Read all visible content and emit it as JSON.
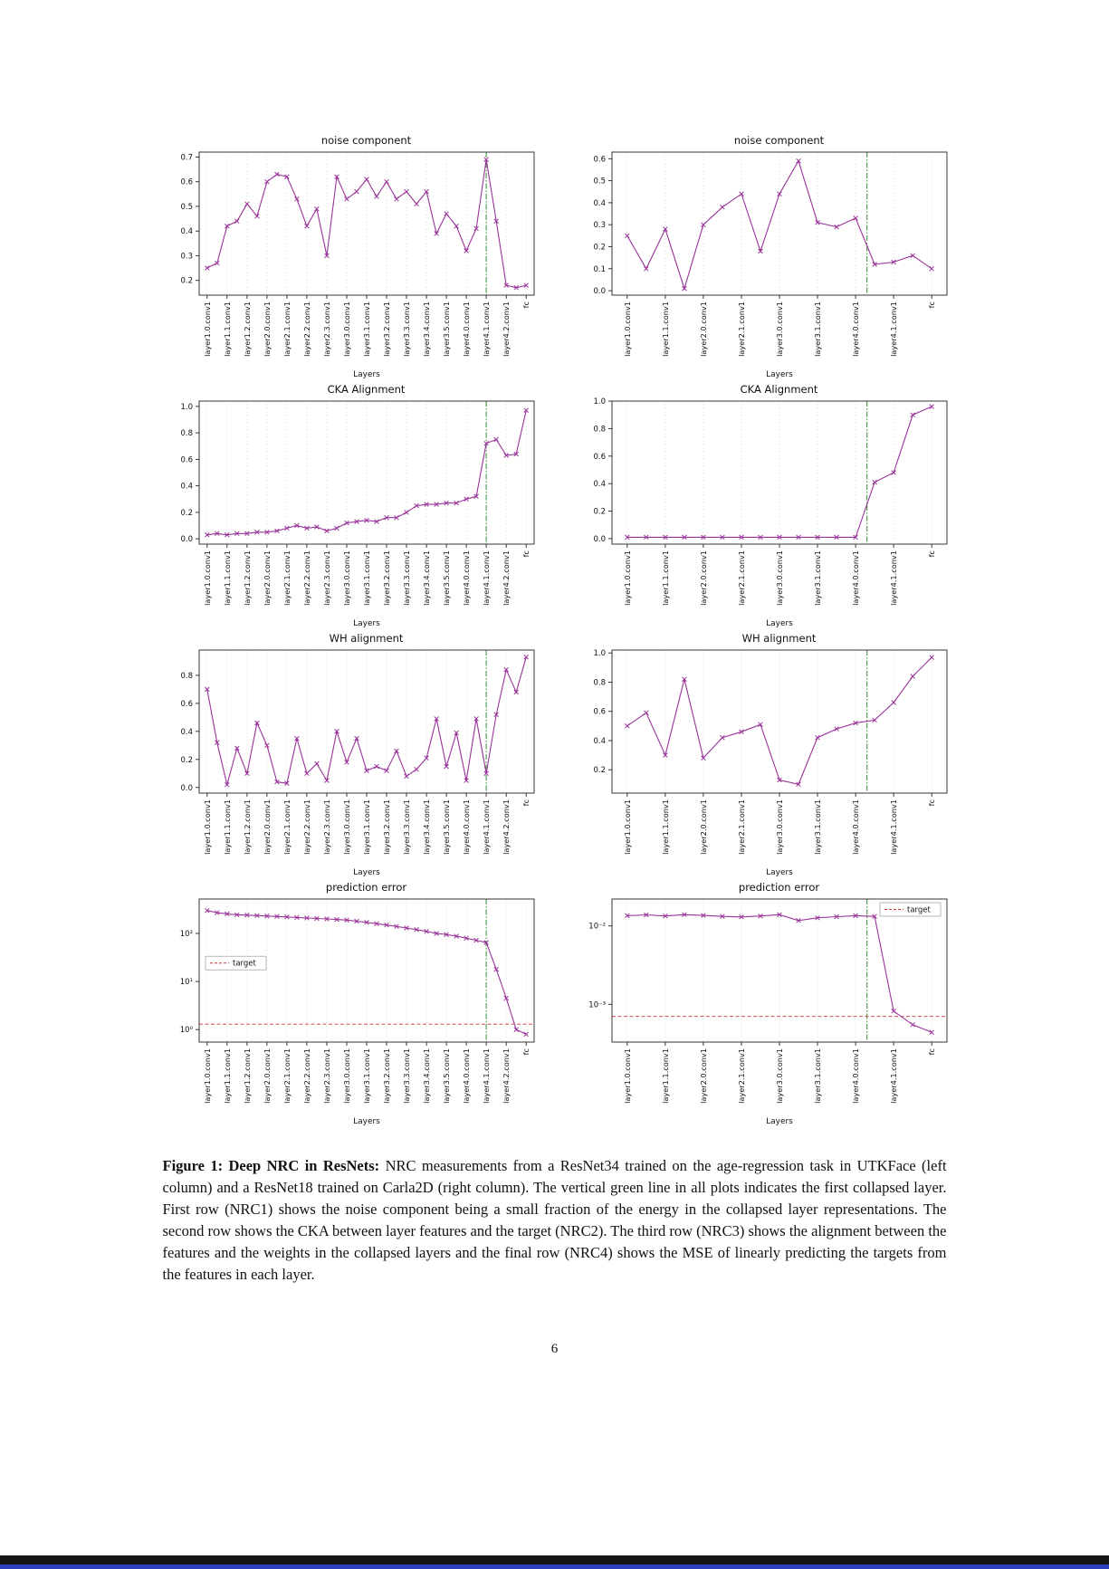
{
  "page": {
    "number": "6"
  },
  "caption": {
    "label": "Figure 1:",
    "title": "Deep NRC in ResNets:",
    "text": "NRC measurements from a ResNet34 trained on the age-regression task in UTKFace (left column) and a ResNet18 trained on Carla2D (right column). The vertical green line in all plots indicates the first collapsed layer. First row (NRC1) shows the noise component being a small fraction of the energy in the collapsed layer representations. The second row shows the CKA between layer features and the target (NRC2). The third row (NRC3) shows the alignment between the features and the weights in the collapsed layers and the final row (NRC4) shows the MSE of linearly predicting the targets from the features in each layer."
  },
  "colors": {
    "series": "#993399",
    "vline": "#2e8b2e",
    "target": "#cc3333",
    "grid": "#c8c8c8",
    "axis": "#222222"
  },
  "layer_ticks": {
    "resnet34": {
      "labels": [
        "layer1.0.conv1",
        "layer1.1.conv1",
        "layer1.2.conv1",
        "layer2.0.conv1",
        "layer2.1.conv1",
        "layer2.2.conv1",
        "layer2.3.conv1",
        "layer3.0.conv1",
        "layer3.1.conv1",
        "layer3.2.conv1",
        "layer3.3.conv1",
        "layer3.4.conv1",
        "layer3.5.conv1",
        "layer4.0.conv1",
        "layer4.1.conv1",
        "layer4.2.conv1",
        "fc"
      ],
      "indices": [
        0,
        2,
        4,
        6,
        8,
        10,
        12,
        14,
        16,
        18,
        20,
        22,
        24,
        26,
        28,
        30,
        32
      ]
    },
    "resnet18": {
      "labels": [
        "layer1.0.conv1",
        "layer1.1.conv1",
        "layer2.0.conv1",
        "layer2.1.conv1",
        "layer3.0.conv1",
        "layer3.1.conv1",
        "layer4.0.conv1",
        "layer4.1.conv1",
        "fc"
      ],
      "indices": [
        0,
        2,
        4,
        6,
        8,
        10,
        12,
        14,
        16
      ]
    }
  },
  "chart_data": [
    {
      "id": "resnet34-noise-component",
      "type": "line",
      "title": "noise component",
      "xlabel": "Layers",
      "ticks": "resnet34",
      "values": [
        0.25,
        0.27,
        0.42,
        0.44,
        0.51,
        0.46,
        0.6,
        0.63,
        0.62,
        0.53,
        0.42,
        0.49,
        0.3,
        0.62,
        0.53,
        0.56,
        0.61,
        0.54,
        0.6,
        0.53,
        0.56,
        0.51,
        0.56,
        0.39,
        0.47,
        0.42,
        0.32,
        0.41,
        0.69,
        0.44,
        0.18,
        0.17,
        0.18
      ],
      "ylim": [
        0.14,
        0.72
      ],
      "yticks": [
        0.2,
        0.3,
        0.4,
        0.5,
        0.6,
        0.7
      ],
      "ylog": false,
      "vline_index": 28,
      "target": null
    },
    {
      "id": "resnet18-noise-component",
      "type": "line",
      "title": "noise component",
      "xlabel": "Layers",
      "ticks": "resnet18",
      "values": [
        0.25,
        0.1,
        0.28,
        0.01,
        0.3,
        0.38,
        0.44,
        0.18,
        0.44,
        0.59,
        0.31,
        0.29,
        0.33,
        0.12,
        0.13,
        0.16,
        0.1
      ],
      "ylim": [
        -0.02,
        0.63
      ],
      "yticks": [
        0.0,
        0.1,
        0.2,
        0.3,
        0.4,
        0.5,
        0.6
      ],
      "ylog": false,
      "vline_index": 12.6,
      "target": null
    },
    {
      "id": "resnet34-cka-alignment",
      "type": "line",
      "title": "CKA Alignment",
      "xlabel": "Layers",
      "ticks": "resnet34",
      "values": [
        0.03,
        0.04,
        0.03,
        0.04,
        0.04,
        0.05,
        0.05,
        0.06,
        0.08,
        0.1,
        0.08,
        0.09,
        0.06,
        0.08,
        0.12,
        0.13,
        0.14,
        0.13,
        0.16,
        0.16,
        0.2,
        0.25,
        0.26,
        0.26,
        0.27,
        0.27,
        0.3,
        0.32,
        0.72,
        0.75,
        0.63,
        0.64,
        0.97
      ],
      "ylim": [
        -0.04,
        1.04
      ],
      "yticks": [
        0.0,
        0.2,
        0.4,
        0.6,
        0.8,
        1.0
      ],
      "ylog": false,
      "vline_index": 28,
      "target": null
    },
    {
      "id": "resnet18-cka-alignment",
      "type": "line",
      "title": "CKA Alignment",
      "xlabel": "Layers",
      "ticks": "resnet18",
      "values": [
        0.01,
        0.01,
        0.01,
        0.01,
        0.01,
        0.01,
        0.01,
        0.01,
        0.01,
        0.01,
        0.01,
        0.01,
        0.01,
        0.41,
        0.48,
        0.9,
        0.96
      ],
      "ylim": [
        -0.04,
        1.0
      ],
      "yticks": [
        0.0,
        0.2,
        0.4,
        0.6,
        0.8,
        1.0
      ],
      "ylog": false,
      "vline_index": 12.6,
      "target": null
    },
    {
      "id": "resnet34-wh-alignment",
      "type": "line",
      "title": "WH alignment",
      "xlabel": "Layers",
      "ticks": "resnet34",
      "values": [
        0.7,
        0.32,
        0.02,
        0.28,
        0.1,
        0.46,
        0.3,
        0.04,
        0.03,
        0.35,
        0.1,
        0.17,
        0.05,
        0.4,
        0.18,
        0.35,
        0.12,
        0.15,
        0.12,
        0.26,
        0.08,
        0.13,
        0.21,
        0.49,
        0.15,
        0.39,
        0.05,
        0.49,
        0.1,
        0.52,
        0.84,
        0.68,
        0.93
      ],
      "ylim": [
        -0.04,
        0.98
      ],
      "yticks": [
        0.0,
        0.2,
        0.4,
        0.6,
        0.8
      ],
      "ylog": false,
      "vline_index": 28,
      "target": null
    },
    {
      "id": "resnet18-wh-alignment",
      "type": "line",
      "title": "WH alignment",
      "xlabel": "Layers",
      "ticks": "resnet18",
      "values": [
        0.5,
        0.59,
        0.3,
        0.82,
        0.28,
        0.42,
        0.46,
        0.51,
        0.13,
        0.1,
        0.42,
        0.48,
        0.52,
        0.54,
        0.66,
        0.84,
        0.97
      ],
      "ylim": [
        0.04,
        1.02
      ],
      "yticks": [
        0.2,
        0.4,
        0.6,
        0.8,
        1.0
      ],
      "ylog": false,
      "vline_index": 12.6,
      "target": null
    },
    {
      "id": "resnet34-prediction-error",
      "type": "line",
      "title": "prediction error",
      "xlabel": "Layers",
      "ticks": "resnet34",
      "values": [
        300,
        270,
        255,
        245,
        240,
        235,
        230,
        225,
        220,
        215,
        210,
        205,
        200,
        195,
        190,
        180,
        170,
        160,
        150,
        140,
        130,
        120,
        110,
        100,
        95,
        88,
        80,
        72,
        65,
        18,
        4.5,
        1.0,
        0.8
      ],
      "ylim": [
        0.55,
        520
      ],
      "yticks": [
        1,
        10,
        100
      ],
      "ylog": true,
      "vline_index": 28,
      "target": {
        "value": 1.3,
        "label": "target",
        "legend_pos": "mid-left"
      }
    },
    {
      "id": "resnet18-prediction-error",
      "type": "line",
      "title": "prediction error",
      "xlabel": "Layers",
      "ticks": "resnet18",
      "values": [
        0.0135,
        0.0138,
        0.0134,
        0.0139,
        0.0136,
        0.0132,
        0.013,
        0.0134,
        0.0139,
        0.0117,
        0.0127,
        0.0131,
        0.0135,
        0.0132,
        0.00082,
        0.00055,
        0.00044
      ],
      "ylim": [
        0.00033,
        0.022
      ],
      "yticks": [
        0.001,
        0.01
      ],
      "ylog": true,
      "vline_index": 12.6,
      "target": {
        "value": 0.0007,
        "label": "target",
        "legend_pos": "top-right"
      }
    }
  ]
}
